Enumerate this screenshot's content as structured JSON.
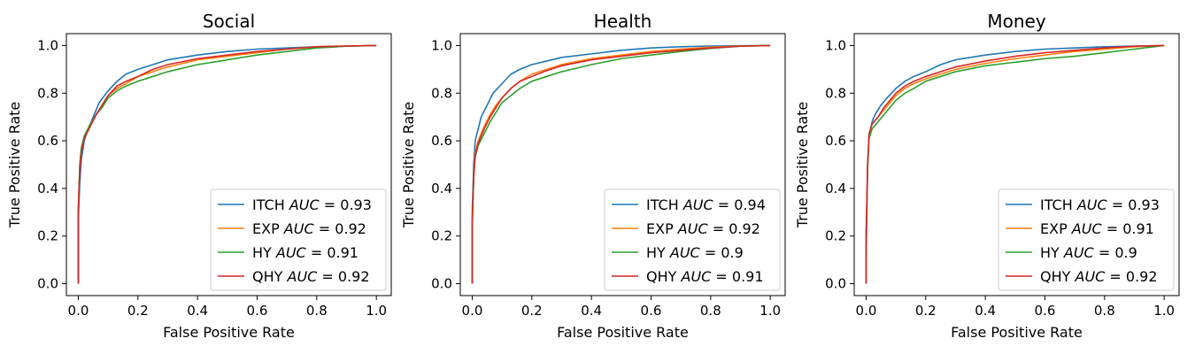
{
  "figure": {
    "background": "#ffffff"
  },
  "chart_data": [
    {
      "type": "line",
      "title": "Social",
      "xlabel": "False Positive Rate",
      "ylabel": "True Positive Rate",
      "xlim": [
        -0.04,
        1.05
      ],
      "ylim": [
        -0.05,
        1.05
      ],
      "xticks": [
        "0.0",
        "0.2",
        "0.4",
        "0.6",
        "0.8",
        "1.0"
      ],
      "yticks": [
        "0.0",
        "0.2",
        "0.4",
        "0.6",
        "0.8",
        "1.0"
      ],
      "grid": false,
      "legend_position": "lower-right",
      "series": [
        {
          "name": "ITCH",
          "auc": "0.93",
          "color": "#1f77b4",
          "x": [
            0,
            0,
            0.005,
            0.01,
            0.02,
            0.03,
            0.05,
            0.07,
            0.1,
            0.13,
            0.16,
            0.2,
            0.25,
            0.3,
            0.4,
            0.5,
            0.6,
            0.7,
            0.8,
            0.9,
            1.0
          ],
          "y": [
            0,
            0.27,
            0.42,
            0.52,
            0.6,
            0.64,
            0.7,
            0.76,
            0.81,
            0.85,
            0.88,
            0.9,
            0.92,
            0.94,
            0.96,
            0.975,
            0.985,
            0.99,
            0.995,
            0.998,
            1.0
          ]
        },
        {
          "name": "EXP",
          "auc": "0.92",
          "color": "#ff7f0e",
          "x": [
            0,
            0,
            0.005,
            0.01,
            0.02,
            0.04,
            0.06,
            0.08,
            0.1,
            0.13,
            0.16,
            0.2,
            0.25,
            0.3,
            0.4,
            0.5,
            0.6,
            0.7,
            0.8,
            0.9,
            1.0
          ],
          "y": [
            0,
            0.3,
            0.5,
            0.56,
            0.62,
            0.67,
            0.71,
            0.75,
            0.79,
            0.82,
            0.84,
            0.87,
            0.89,
            0.91,
            0.94,
            0.955,
            0.97,
            0.985,
            0.995,
            0.998,
            1.0
          ]
        },
        {
          "name": "HY",
          "auc": "0.91",
          "color": "#2ca02c",
          "x": [
            0,
            0,
            0.005,
            0.01,
            0.02,
            0.04,
            0.06,
            0.08,
            0.1,
            0.13,
            0.16,
            0.2,
            0.25,
            0.3,
            0.4,
            0.5,
            0.6,
            0.7,
            0.8,
            0.9,
            1.0
          ],
          "y": [
            0,
            0.3,
            0.5,
            0.57,
            0.62,
            0.67,
            0.71,
            0.74,
            0.78,
            0.81,
            0.83,
            0.85,
            0.87,
            0.89,
            0.92,
            0.94,
            0.96,
            0.975,
            0.99,
            0.997,
            1.0
          ]
        },
        {
          "name": "QHY",
          "auc": "0.92",
          "color": "#d62728",
          "x": [
            0,
            0,
            0.005,
            0.01,
            0.02,
            0.04,
            0.06,
            0.08,
            0.1,
            0.13,
            0.16,
            0.2,
            0.25,
            0.3,
            0.4,
            0.5,
            0.6,
            0.7,
            0.8,
            0.9,
            1.0
          ],
          "y": [
            0,
            0.32,
            0.48,
            0.55,
            0.61,
            0.66,
            0.71,
            0.75,
            0.79,
            0.83,
            0.85,
            0.87,
            0.9,
            0.92,
            0.945,
            0.96,
            0.975,
            0.985,
            0.995,
            0.998,
            1.0
          ]
        }
      ]
    },
    {
      "type": "line",
      "title": "Health",
      "xlabel": "False Positive Rate",
      "ylabel": "True Positive Rate",
      "xlim": [
        -0.04,
        1.05
      ],
      "ylim": [
        -0.05,
        1.05
      ],
      "xticks": [
        "0.0",
        "0.2",
        "0.4",
        "0.6",
        "0.8",
        "1.0"
      ],
      "yticks": [
        "0.0",
        "0.2",
        "0.4",
        "0.6",
        "0.8",
        "1.0"
      ],
      "grid": false,
      "legend_position": "lower-right",
      "series": [
        {
          "name": "ITCH",
          "auc": "0.94",
          "color": "#1f77b4",
          "x": [
            0,
            0,
            0.005,
            0.01,
            0.02,
            0.03,
            0.05,
            0.07,
            0.1,
            0.13,
            0.16,
            0.2,
            0.25,
            0.3,
            0.4,
            0.5,
            0.6,
            0.7,
            0.8,
            0.9,
            1.0
          ],
          "y": [
            0,
            0.3,
            0.5,
            0.6,
            0.65,
            0.7,
            0.75,
            0.8,
            0.84,
            0.88,
            0.9,
            0.92,
            0.935,
            0.95,
            0.965,
            0.98,
            0.99,
            0.995,
            0.998,
            0.999,
            1.0
          ]
        },
        {
          "name": "EXP",
          "auc": "0.92",
          "color": "#ff7f0e",
          "x": [
            0,
            0,
            0.005,
            0.01,
            0.02,
            0.04,
            0.06,
            0.08,
            0.1,
            0.13,
            0.16,
            0.2,
            0.25,
            0.3,
            0.4,
            0.5,
            0.6,
            0.7,
            0.8,
            0.9,
            1.0
          ],
          "y": [
            0,
            0.25,
            0.45,
            0.55,
            0.6,
            0.66,
            0.71,
            0.75,
            0.78,
            0.82,
            0.85,
            0.88,
            0.9,
            0.92,
            0.945,
            0.96,
            0.975,
            0.985,
            0.993,
            0.998,
            1.0
          ]
        },
        {
          "name": "HY",
          "auc": "0.9",
          "color": "#2ca02c",
          "x": [
            0,
            0,
            0.005,
            0.01,
            0.02,
            0.04,
            0.06,
            0.08,
            0.1,
            0.13,
            0.16,
            0.2,
            0.25,
            0.3,
            0.4,
            0.5,
            0.6,
            0.7,
            0.8,
            0.9,
            1.0
          ],
          "y": [
            0,
            0.25,
            0.45,
            0.53,
            0.58,
            0.63,
            0.68,
            0.72,
            0.76,
            0.79,
            0.82,
            0.85,
            0.87,
            0.89,
            0.92,
            0.945,
            0.96,
            0.975,
            0.988,
            0.997,
            1.0
          ]
        },
        {
          "name": "QHY",
          "auc": "0.91",
          "color": "#d62728",
          "x": [
            0,
            0,
            0.005,
            0.01,
            0.02,
            0.04,
            0.06,
            0.08,
            0.1,
            0.13,
            0.16,
            0.2,
            0.25,
            0.3,
            0.4,
            0.5,
            0.6,
            0.7,
            0.8,
            0.9,
            1.0
          ],
          "y": [
            0,
            0.25,
            0.45,
            0.54,
            0.59,
            0.65,
            0.7,
            0.74,
            0.78,
            0.82,
            0.85,
            0.87,
            0.895,
            0.915,
            0.94,
            0.955,
            0.97,
            0.98,
            0.99,
            0.997,
            1.0
          ]
        }
      ]
    },
    {
      "type": "line",
      "title": "Money",
      "xlabel": "False Positive Rate",
      "ylabel": "True Positive Rate",
      "xlim": [
        -0.04,
        1.05
      ],
      "ylim": [
        -0.05,
        1.05
      ],
      "xticks": [
        "0.0",
        "0.2",
        "0.4",
        "0.6",
        "0.8",
        "1.0"
      ],
      "yticks": [
        "0.0",
        "0.2",
        "0.4",
        "0.6",
        "0.8",
        "1.0"
      ],
      "grid": false,
      "legend_position": "lower-right",
      "series": [
        {
          "name": "ITCH",
          "auc": "0.93",
          "color": "#1f77b4",
          "x": [
            0,
            0,
            0.005,
            0.01,
            0.02,
            0.03,
            0.05,
            0.07,
            0.1,
            0.13,
            0.16,
            0.2,
            0.25,
            0.3,
            0.4,
            0.5,
            0.6,
            0.7,
            0.8,
            0.9,
            1.0
          ],
          "y": [
            0,
            0.1,
            0.5,
            0.62,
            0.68,
            0.71,
            0.75,
            0.78,
            0.82,
            0.85,
            0.87,
            0.89,
            0.92,
            0.94,
            0.96,
            0.975,
            0.985,
            0.99,
            0.995,
            0.998,
            1.0
          ]
        },
        {
          "name": "EXP",
          "auc": "0.91",
          "color": "#ff7f0e",
          "x": [
            0,
            0,
            0.005,
            0.01,
            0.02,
            0.04,
            0.06,
            0.08,
            0.1,
            0.13,
            0.16,
            0.2,
            0.25,
            0.3,
            0.4,
            0.5,
            0.6,
            0.7,
            0.8,
            0.9,
            1.0
          ],
          "y": [
            0,
            0.2,
            0.5,
            0.63,
            0.67,
            0.7,
            0.73,
            0.76,
            0.79,
            0.82,
            0.84,
            0.86,
            0.88,
            0.9,
            0.925,
            0.945,
            0.96,
            0.975,
            0.985,
            0.995,
            1.0
          ]
        },
        {
          "name": "HY",
          "auc": "0.9",
          "color": "#2ca02c",
          "x": [
            0,
            0,
            0.005,
            0.01,
            0.02,
            0.04,
            0.06,
            0.08,
            0.1,
            0.13,
            0.16,
            0.2,
            0.25,
            0.3,
            0.4,
            0.5,
            0.6,
            0.7,
            0.8,
            0.9,
            1.0
          ],
          "y": [
            0,
            0.2,
            0.48,
            0.61,
            0.65,
            0.68,
            0.71,
            0.74,
            0.77,
            0.8,
            0.82,
            0.85,
            0.87,
            0.89,
            0.915,
            0.93,
            0.945,
            0.955,
            0.97,
            0.985,
            1.0
          ]
        },
        {
          "name": "QHY",
          "auc": "0.92",
          "color": "#d62728",
          "x": [
            0,
            0,
            0.005,
            0.01,
            0.02,
            0.04,
            0.06,
            0.08,
            0.1,
            0.13,
            0.16,
            0.2,
            0.25,
            0.3,
            0.4,
            0.5,
            0.6,
            0.7,
            0.8,
            0.9,
            1.0
          ],
          "y": [
            0,
            0.2,
            0.5,
            0.63,
            0.67,
            0.7,
            0.74,
            0.77,
            0.8,
            0.83,
            0.85,
            0.87,
            0.89,
            0.91,
            0.935,
            0.955,
            0.97,
            0.98,
            0.99,
            0.997,
            1.0
          ]
        }
      ]
    }
  ]
}
